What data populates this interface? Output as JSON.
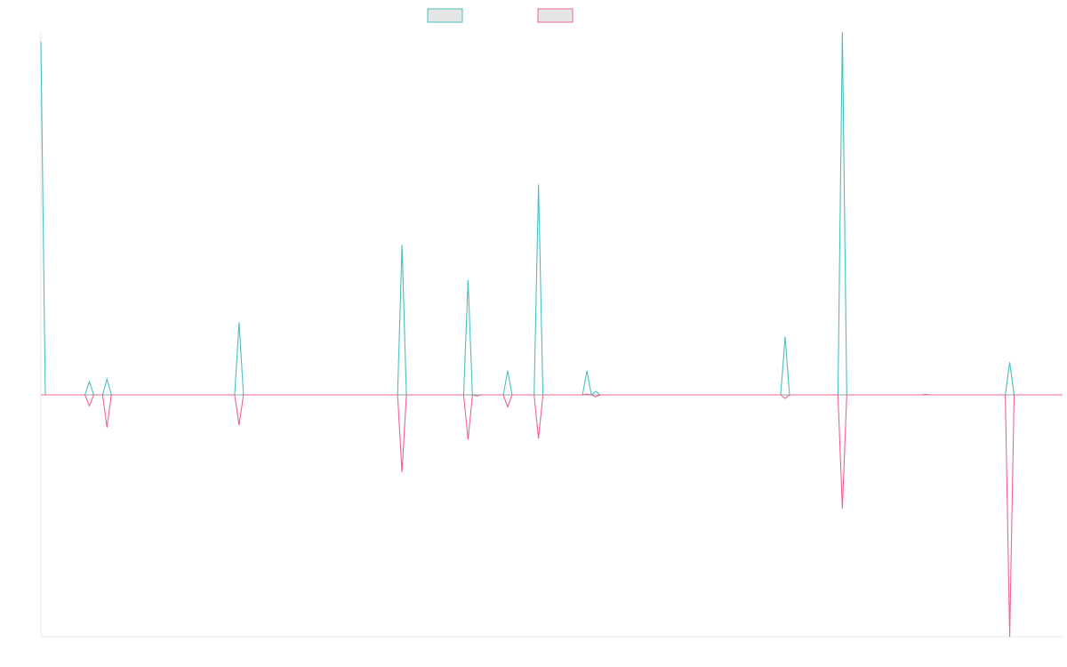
{
  "chart_data": {
    "type": "line",
    "title": "",
    "xlabel": "",
    "ylabel": "",
    "n_points": 233,
    "xlim": [
      0,
      232
    ],
    "ylim": [
      -1,
      1.5
    ],
    "baseline": 0,
    "grid": false,
    "legend": {
      "placement": "top-center"
    },
    "series": [
      {
        "color": "#4bbfc0",
        "points": [
          [
            0,
            1.46
          ],
          [
            1,
            0
          ],
          [
            10,
            0
          ],
          [
            11,
            0.055
          ],
          [
            12,
            0
          ],
          [
            14,
            0
          ],
          [
            15,
            0.065
          ],
          [
            16,
            0
          ],
          [
            44,
            0
          ],
          [
            45,
            0.3
          ],
          [
            46,
            0
          ],
          [
            81,
            0
          ],
          [
            82,
            0.62
          ],
          [
            83,
            0
          ],
          [
            96,
            0
          ],
          [
            97,
            0.475
          ],
          [
            98,
            0
          ],
          [
            99,
            0
          ],
          [
            105,
            0
          ],
          [
            106,
            0.1
          ],
          [
            107,
            0
          ],
          [
            112,
            0
          ],
          [
            113,
            0.87
          ],
          [
            114,
            0
          ],
          [
            123,
            0
          ],
          [
            124,
            0.1
          ],
          [
            125,
            0
          ],
          [
            126,
            0.015
          ],
          [
            127,
            0
          ],
          [
            168,
            0
          ],
          [
            169,
            0.24
          ],
          [
            170,
            0
          ],
          [
            181,
            0
          ],
          [
            182,
            1.5
          ],
          [
            183,
            0
          ],
          [
            219,
            0
          ],
          [
            220,
            0.135
          ],
          [
            221,
            0
          ],
          [
            232,
            0
          ]
        ]
      },
      {
        "color": "#f0648c",
        "points": [
          [
            0,
            0
          ],
          [
            1,
            0
          ],
          [
            10,
            0
          ],
          [
            11,
            -0.045
          ],
          [
            12,
            0
          ],
          [
            14,
            0
          ],
          [
            15,
            -0.135
          ],
          [
            16,
            0
          ],
          [
            44,
            0
          ],
          [
            45,
            -0.125
          ],
          [
            46,
            0
          ],
          [
            81,
            0
          ],
          [
            82,
            -0.32
          ],
          [
            83,
            0
          ],
          [
            96,
            0
          ],
          [
            97,
            -0.185
          ],
          [
            98,
            0
          ],
          [
            99,
            -0.005
          ],
          [
            100,
            0
          ],
          [
            105,
            0
          ],
          [
            106,
            -0.05
          ],
          [
            107,
            0
          ],
          [
            112,
            0
          ],
          [
            113,
            -0.18
          ],
          [
            114,
            0
          ],
          [
            123,
            0
          ],
          [
            124,
            0.003
          ],
          [
            125,
            0
          ],
          [
            126,
            -0.008
          ],
          [
            127,
            0
          ],
          [
            168,
            0
          ],
          [
            169,
            -0.015
          ],
          [
            170,
            0
          ],
          [
            181,
            0
          ],
          [
            182,
            -0.47
          ],
          [
            183,
            0
          ],
          [
            200,
            0
          ],
          [
            201,
            0.002
          ],
          [
            202,
            0
          ],
          [
            219,
            0
          ],
          [
            220,
            -1.0
          ],
          [
            221,
            0
          ],
          [
            232,
            0
          ]
        ]
      }
    ]
  }
}
